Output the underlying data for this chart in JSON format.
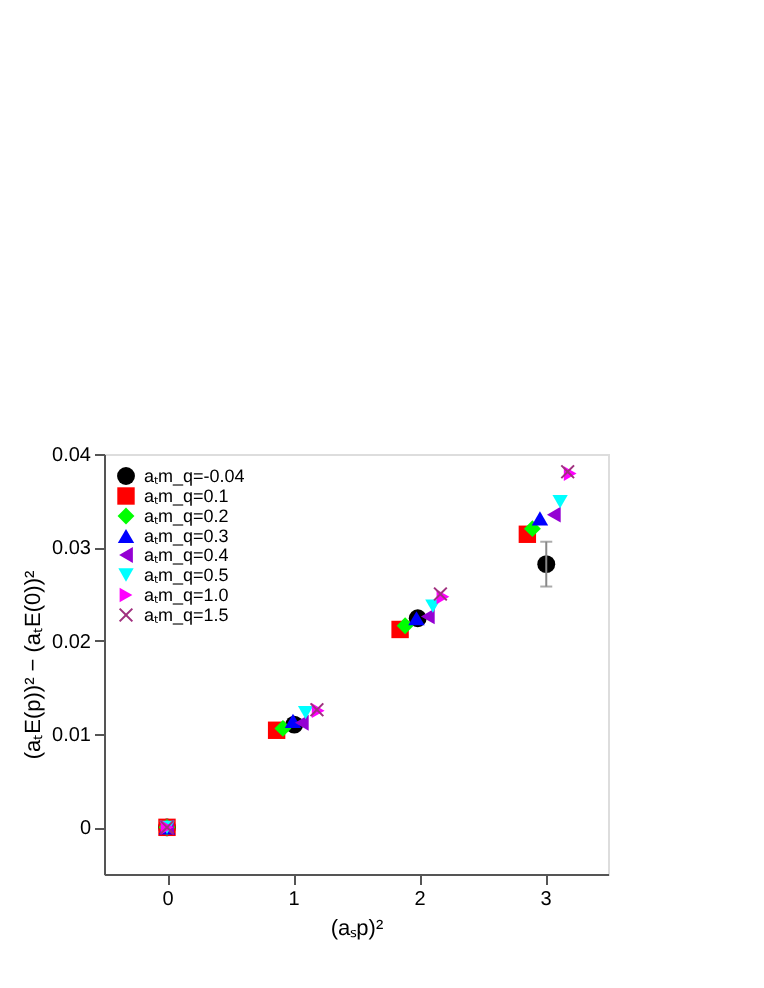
{
  "chart_data": {
    "type": "scatter",
    "xlabel": "(aₛp)²",
    "ylabel": "(aₜE(p))² − (aₜE(0))²",
    "xlim": [
      -0.5,
      3.5
    ],
    "xticks": [
      0,
      1,
      2,
      3
    ],
    "ylim": [
      -0.005,
      0.04
    ],
    "yticks": [
      0,
      0.01,
      0.02,
      0.03,
      0.04
    ],
    "grid": false,
    "legend": "top left",
    "series": [
      {
        "name": "aₜm_q=-0.04",
        "color": "#000000",
        "marker": "circle",
        "x": [
          0,
          1.01,
          1.99,
          3.01
        ],
        "values": [
          0,
          0.011,
          0.0224,
          0.0282
        ],
        "errors": [
          null,
          null,
          null,
          0.0024
        ]
      },
      {
        "name": "aₜm_q=0.1",
        "color": "#ff0000",
        "marker": "square",
        "x": [
          0,
          0.87,
          1.85,
          2.86
        ],
        "values": [
          0,
          0.0104,
          0.0212,
          0.0314
        ]
      },
      {
        "name": "aₜm_q=0.2",
        "color": "#00ff00",
        "marker": "diamond",
        "x": [
          0,
          0.92,
          1.89,
          2.9
        ],
        "values": [
          0,
          0.0106,
          0.0216,
          0.032
        ]
      },
      {
        "name": "aₜm_q=0.3",
        "color": "#0000ff",
        "marker": "triangle-up",
        "x": [
          0,
          1.0,
          1.98,
          2.96
        ],
        "values": [
          0,
          0.0114,
          0.0224,
          0.0331
        ]
      },
      {
        "name": "aₜm_q=0.4",
        "color": "#9400d3",
        "marker": "triangle-left",
        "x": [
          0,
          1.07,
          2.07,
          3.07
        ],
        "values": [
          0,
          0.0112,
          0.0226,
          0.0335
        ]
      },
      {
        "name": "aₜm_q=0.5",
        "color": "#00ffff",
        "marker": "triangle-down",
        "x": [
          0,
          1.1,
          2.11,
          3.12
        ],
        "values": [
          0,
          0.0123,
          0.0237,
          0.0349
        ]
      },
      {
        "name": "aₜm_q=1.0",
        "color": "#ff00ff",
        "marker": "triangle-right",
        "x": [
          0,
          1.2,
          2.19,
          3.2
        ],
        "values": [
          0,
          0.0125,
          0.0247,
          0.0379
        ]
      },
      {
        "name": "aₜm_q=1.5",
        "color": "#a0307f",
        "marker": "cross",
        "x": [
          0,
          1.19,
          2.17,
          3.18
        ],
        "values": [
          0,
          0.0126,
          0.025,
          0.0381
        ]
      }
    ]
  }
}
